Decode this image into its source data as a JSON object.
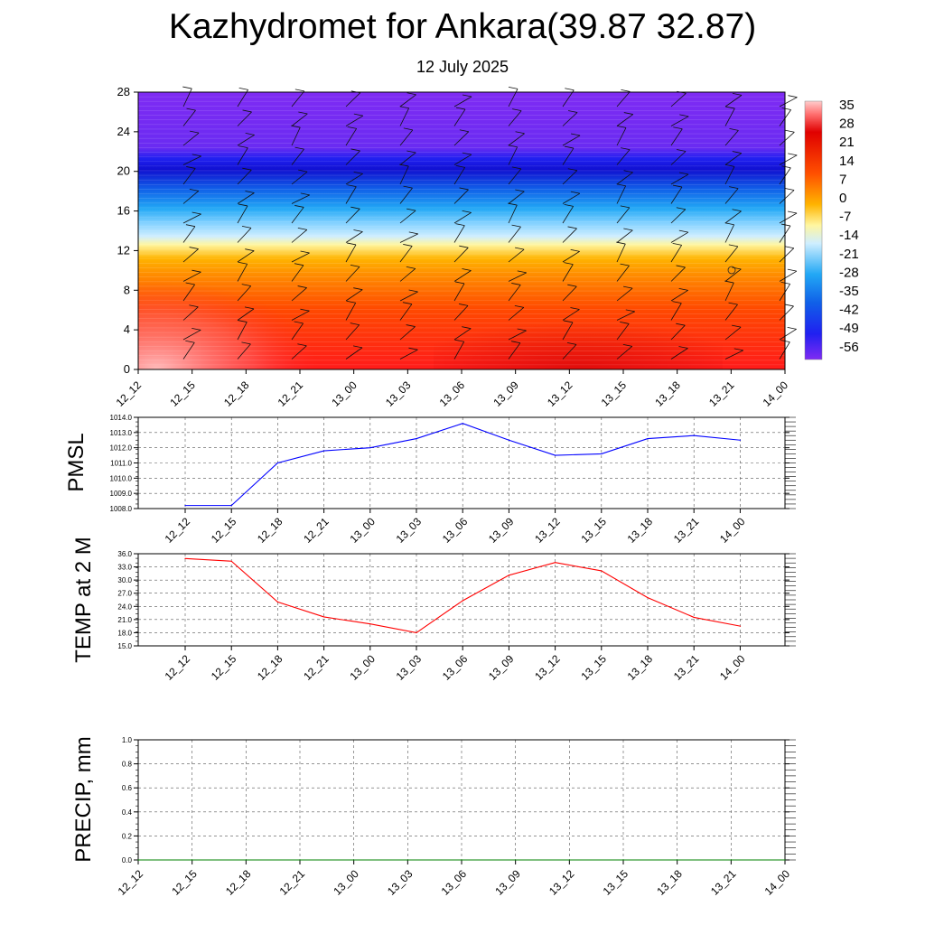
{
  "title": "Kazhydromet for Ankara(39.87 32.87)",
  "subtitle": "12 July 2025",
  "time_labels": [
    "12_12",
    "12_15",
    "12_18",
    "12_21",
    "13_00",
    "13_03",
    "13_06",
    "13_09",
    "13_12",
    "13_15",
    "13_18",
    "13_21",
    "14_00"
  ],
  "colorbar": {
    "labels": [
      "35",
      "28",
      "21",
      "14",
      "7",
      "0",
      "-7",
      "-14",
      "-21",
      "-28",
      "-35",
      "-42",
      "-49",
      "-56"
    ]
  },
  "chart_data": [
    {
      "type": "heatmap",
      "description_of_axes": "",
      "x": [
        "12_12",
        "12_15",
        "12_18",
        "12_21",
        "13_00",
        "13_03",
        "13_06",
        "13_09",
        "13_12",
        "13_15",
        "13_18",
        "13_21",
        "14_00"
      ],
      "ylim": [
        0,
        28
      ],
      "yticks": [
        0,
        4,
        8,
        12,
        16,
        20,
        24,
        28
      ],
      "colorbar_range": [
        -56,
        35
      ],
      "grid": false,
      "legend": "right"
    },
    {
      "type": "line",
      "ylabel": "PMSL",
      "x": [
        "12_12",
        "12_15",
        "12_18",
        "12_21",
        "13_00",
        "13_03",
        "13_06",
        "13_09",
        "13_12",
        "13_15",
        "13_18",
        "13_21",
        "14_00"
      ],
      "series": [
        {
          "values": [
            1008.2,
            1008.2,
            1011.0,
            1011.8,
            1012.0,
            1012.6,
            1013.6,
            1012.5,
            1011.5,
            1011.6,
            1012.6,
            1012.8,
            1012.5
          ],
          "color": "#0000ff"
        }
      ],
      "ylim": [
        1008.0,
        1014.0
      ],
      "yticks": [
        "1008.0",
        "1009.0",
        "1010.0",
        "1011.0",
        "1012.0",
        "1013.0",
        "1014.0"
      ],
      "grid": true
    },
    {
      "type": "line",
      "ylabel": "TEMP at 2 M",
      "x": [
        "12_12",
        "12_15",
        "12_18",
        "12_21",
        "13_00",
        "13_03",
        "13_06",
        "13_09",
        "13_12",
        "13_15",
        "13_18",
        "13_21",
        "14_00"
      ],
      "series": [
        {
          "values": [
            34.9,
            34.3,
            25.0,
            21.6,
            20.0,
            18.0,
            25.3,
            31.1,
            34.0,
            32.1,
            26.0,
            21.5,
            19.5
          ],
          "color": "#ff0000"
        }
      ],
      "ylim": [
        15.0,
        36.0
      ],
      "yticks": [
        "15.0",
        "18.0",
        "21.0",
        "24.0",
        "27.0",
        "30.0",
        "33.0",
        "36.0"
      ],
      "grid": true
    },
    {
      "type": "line",
      "ylabel": "PRECIP, mm",
      "x": [
        "12_12",
        "12_15",
        "12_18",
        "12_21",
        "13_00",
        "13_03",
        "13_06",
        "13_09",
        "13_12",
        "13_15",
        "13_18",
        "13_21",
        "14_00"
      ],
      "series": [
        {
          "values": [
            0,
            0,
            0,
            0,
            0,
            0,
            0,
            0,
            0,
            0,
            0,
            0,
            0
          ],
          "color": "#008000"
        }
      ],
      "ylim": [
        0.0,
        1.0
      ],
      "yticks": [
        "0.0",
        "0.2",
        "0.4",
        "0.6",
        "0.8",
        "1.0"
      ],
      "grid": true
    }
  ]
}
